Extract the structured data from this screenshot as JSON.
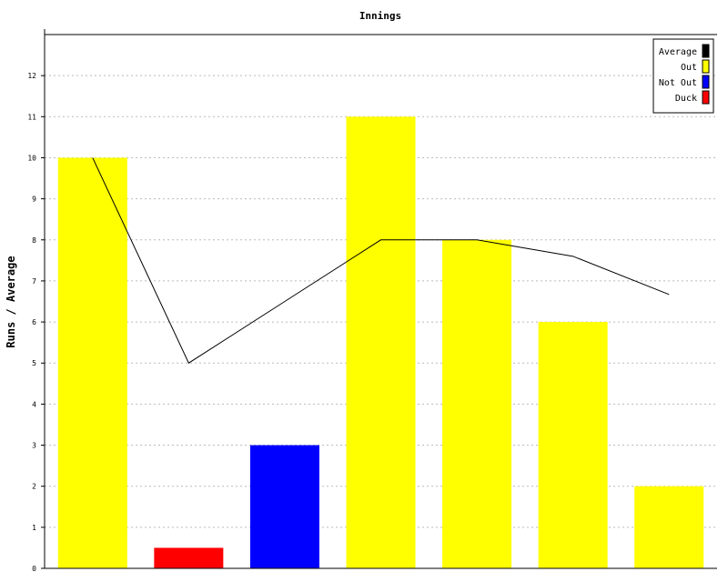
{
  "chart_data": {
    "type": "bar",
    "title": "Innings",
    "xlabel": "",
    "ylabel": "Runs / Average",
    "ylim": [
      0,
      13
    ],
    "yticks": [
      0,
      1,
      2,
      3,
      4,
      5,
      6,
      7,
      8,
      9,
      10,
      11,
      12
    ],
    "grid": true,
    "legend_position": "top-right",
    "bars": [
      {
        "value": 10,
        "kind": "Out"
      },
      {
        "value": 0.5,
        "kind": "Duck"
      },
      {
        "value": 3,
        "kind": "Not Out"
      },
      {
        "value": 11,
        "kind": "Out"
      },
      {
        "value": 8,
        "kind": "Out"
      },
      {
        "value": 6,
        "kind": "Out"
      },
      {
        "value": 2,
        "kind": "Out"
      }
    ],
    "average_line": [
      10,
      5,
      6.5,
      8,
      8,
      7.6,
      6.67
    ],
    "legend": [
      {
        "name": "Average",
        "color": "#000000"
      },
      {
        "name": "Out",
        "color": "#ffff00"
      },
      {
        "name": "Not Out",
        "color": "#0000ff"
      },
      {
        "name": "Duck",
        "color": "#ff0000"
      }
    ],
    "colors": {
      "Out": "#ffff00",
      "Not Out": "#0000ff",
      "Duck": "#ff0000",
      "Average": "#000000",
      "grid": "#bbbbbb",
      "axis": "#000000"
    }
  }
}
